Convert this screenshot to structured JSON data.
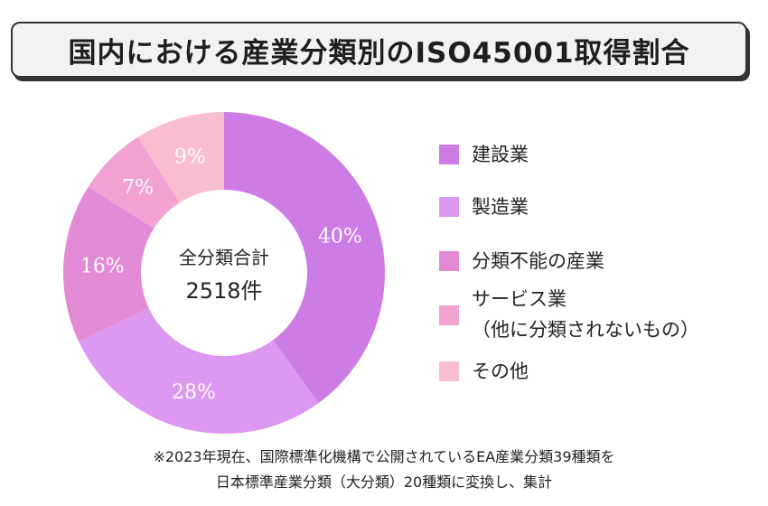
{
  "header": {
    "title": "国内における産業分類別のISO45001取得割合"
  },
  "chart_data": {
    "type": "pie",
    "donut": true,
    "categories": [
      "建設業",
      "製造業",
      "分類不能の産業",
      "サービス業（他に分類されないもの）",
      "その他"
    ],
    "values": [
      40,
      28,
      16,
      7,
      9
    ],
    "value_labels": [
      "40%",
      "28%",
      "16%",
      "7%",
      "9%"
    ],
    "colors": [
      "#cd7ce6",
      "#dd98f2",
      "#e38ad6",
      "#f1a2d2",
      "#f9bdd2"
    ],
    "center_text": {
      "line1": "全分類合計",
      "line2": "2518件"
    },
    "legend_position": "right"
  },
  "legend": {
    "items": [
      {
        "label": "建設業",
        "sub": "",
        "color": "#cd7ce6"
      },
      {
        "label": "製造業",
        "sub": "",
        "color": "#dd98f2"
      },
      {
        "label": "分類不能の産業",
        "sub": "",
        "color": "#e38ad6"
      },
      {
        "label": "サービス業",
        "sub": "（他に分類されないもの）",
        "color": "#f1a2d2"
      },
      {
        "label": "その他",
        "sub": "",
        "color": "#f9bdd2"
      }
    ]
  },
  "footnote": {
    "line1": "※2023年現在、国際標準化機構で公開されているEA産業分類39種類を",
    "line2": "日本標準産業分類（大分類）20種類に変換し、集計"
  }
}
